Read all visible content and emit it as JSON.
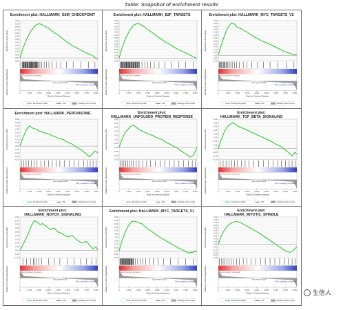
{
  "caption": "Table: Snapshot of enrichment results",
  "watermark": "生信人",
  "shared": {
    "ylabel_top": "Enrichment score (ES)",
    "ylabel_bottom": "Ranked list metric (Signal2Noise)",
    "xlabel": "Rank in Ordered Dataset",
    "x_ticks": [
      "0",
      "1,000",
      "2,000",
      "3,000",
      "4,000",
      "5,000",
      "6,000",
      "7,000",
      "8,000"
    ],
    "zero_cross_label": "Zero cross at 4,229",
    "pos_label": "'Neat' (positively correlated)",
    "neg_label": "'Mixe' (negatively correlated)",
    "legend": [
      "Enrichment profile",
      "Hits",
      "Ranking metric scores"
    ],
    "colors": {
      "profile": "#2ecc2e",
      "hits": "#000000",
      "metric": "#9a9a9a",
      "pos": "#e03030",
      "neg": "#3040c0"
    }
  },
  "chart_data": [
    {
      "type": "line",
      "title": "Enrichment plot: HALLMARK_G2M_CHECKPOINT",
      "xlim": [
        0,
        8200
      ],
      "ylim": [
        -0.05,
        0.6
      ],
      "y_ticks": [
        "0.60",
        "0.55",
        "0.50",
        "0.45",
        "0.40",
        "0.35",
        "0.30",
        "0.25",
        "0.20",
        "0.15",
        "0.10",
        "0.05",
        "0.00",
        "-0.05"
      ],
      "x": [
        0,
        300,
        700,
        1100,
        1500,
        1800,
        2100,
        2500,
        3000,
        3500,
        4000,
        4500,
        5000,
        5500,
        6000,
        6500,
        7000,
        7500,
        7800,
        8000,
        8200
      ],
      "y": [
        0,
        0.15,
        0.3,
        0.42,
        0.5,
        0.54,
        0.55,
        0.52,
        0.48,
        0.42,
        0.37,
        0.31,
        0.25,
        0.2,
        0.16,
        0.12,
        0.08,
        0.05,
        0.02,
        -0.01,
        0
      ],
      "hits": [
        120,
        240,
        400,
        560,
        640,
        800,
        960,
        1100,
        1200,
        1350,
        1500,
        1620,
        1750,
        1900,
        2100,
        2300,
        2550,
        2800,
        3050,
        3400,
        3800,
        4300,
        4900,
        5600,
        6400,
        7200,
        7900
      ],
      "hits_dense": [
        [
          300,
          1900
        ]
      ]
    },
    {
      "type": "line",
      "title": "Enrichment plot: HALLMARK_E2F_TARGETS",
      "xlim": [
        0,
        8200
      ],
      "ylim": [
        -0.05,
        0.65
      ],
      "y_ticks": [
        "0.65",
        "0.60",
        "0.55",
        "0.50",
        "0.45",
        "0.40",
        "0.35",
        "0.30",
        "0.25",
        "0.20",
        "0.15",
        "0.10",
        "0.05",
        "0.00",
        "-0.05"
      ],
      "x": [
        0,
        300,
        700,
        1100,
        1500,
        1900,
        2200,
        2600,
        3000,
        3500,
        4000,
        4500,
        5000,
        5500,
        6000,
        6500,
        7000,
        7500,
        8000,
        8200
      ],
      "y": [
        0,
        0.18,
        0.35,
        0.48,
        0.57,
        0.6,
        0.59,
        0.55,
        0.5,
        0.44,
        0.38,
        0.32,
        0.27,
        0.22,
        0.17,
        0.13,
        0.09,
        0.05,
        0.01,
        0
      ],
      "hits": [
        100,
        250,
        420,
        600,
        780,
        950,
        1100,
        1300,
        1500,
        1700,
        1900,
        2150,
        2400,
        2700,
        3000,
        3300,
        3700,
        4200,
        4800,
        5500,
        6300,
        7000,
        7800
      ],
      "hits_dense": [
        [
          200,
          2100
        ]
      ]
    },
    {
      "type": "line",
      "title": "Enrichment plot: HALLMARK_MYC_TARGETS_V2",
      "xlim": [
        0,
        8200
      ],
      "ylim": [
        -0.1,
        0.6
      ],
      "y_ticks": [
        "0.60",
        "0.55",
        "0.50",
        "0.45",
        "0.40",
        "0.35",
        "0.30",
        "0.25",
        "0.20",
        "0.15",
        "0.10",
        "0.05",
        "0.00",
        "-0.05",
        "-0.10"
      ],
      "x": [
        0,
        250,
        600,
        900,
        1200,
        1400,
        1700,
        2000,
        2400,
        2800,
        3200,
        3600,
        4000,
        4500,
        5000,
        5500,
        6000,
        6500,
        7000,
        7500,
        8000,
        8200
      ],
      "y": [
        0,
        0.15,
        0.32,
        0.45,
        0.53,
        0.56,
        0.54,
        0.48,
        0.46,
        0.42,
        0.38,
        0.33,
        0.3,
        0.25,
        0.22,
        0.18,
        0.14,
        0.1,
        0.06,
        0.03,
        0.01,
        0
      ],
      "hits": [
        80,
        150,
        250,
        330,
        420,
        520,
        610,
        700,
        800,
        900,
        1000,
        1150,
        1300,
        1450,
        1700,
        1900,
        2200,
        2600,
        3000,
        3500,
        4100,
        4700,
        5400,
        6200,
        7100,
        7900
      ],
      "hits_dense": []
    },
    {
      "type": "line",
      "title": "Enrichment plot: HALLMARK_PEROXISOME",
      "xlim": [
        0,
        8200
      ],
      "ylim": [
        -0.2,
        0.4
      ],
      "y_ticks": [
        "0.40",
        "0.35",
        "0.30",
        "0.25",
        "0.20",
        "0.15",
        "0.10",
        "0.05",
        "0.00",
        "-0.05",
        "-0.10",
        "-0.15",
        "-0.20"
      ],
      "x": [
        0,
        300,
        700,
        1000,
        1300,
        1700,
        2100,
        2500,
        3000,
        3500,
        4000,
        4500,
        5000,
        5500,
        6000,
        6500,
        7000,
        7300,
        7600,
        7900,
        8200
      ],
      "y": [
        0,
        0.12,
        0.25,
        0.3,
        0.27,
        0.25,
        0.22,
        0.2,
        0.18,
        0.15,
        0.12,
        0.1,
        0.06,
        0.03,
        -0.02,
        -0.06,
        -0.12,
        -0.16,
        -0.12,
        -0.07,
        -0.1
      ],
      "hits": [
        150,
        400,
        650,
        900,
        1200,
        1500,
        1800,
        2200,
        2600,
        3000,
        3400,
        3800,
        4200,
        4700,
        5200,
        5700,
        6200,
        6700,
        7100,
        7400,
        7700,
        8000
      ],
      "hits_dense": []
    },
    {
      "type": "line",
      "title": "Enrichment plot: HALLMARK_UNFOLDED_PROTEIN_RESPONSE",
      "xlim": [
        0,
        8200
      ],
      "ylim": [
        -0.15,
        0.35
      ],
      "y_ticks": [
        "0.35",
        "0.30",
        "0.25",
        "0.20",
        "0.15",
        "0.10",
        "0.05",
        "0.00",
        "-0.05",
        "-0.10",
        "-0.15"
      ],
      "x": [
        0,
        300,
        600,
        900,
        1200,
        1500,
        1800,
        2100,
        2500,
        3000,
        3500,
        4000,
        4500,
        5000,
        5500,
        6000,
        6500,
        7000,
        7500,
        7800,
        8000,
        8200
      ],
      "y": [
        0,
        0.1,
        0.18,
        0.22,
        0.26,
        0.28,
        0.25,
        0.22,
        0.2,
        0.17,
        0.15,
        0.12,
        0.1,
        0.06,
        0.03,
        0,
        -0.04,
        -0.08,
        -0.12,
        -0.1,
        -0.05,
        0
      ],
      "hits": [
        100,
        300,
        500,
        700,
        900,
        1100,
        1300,
        1500,
        1800,
        2100,
        2500,
        2900,
        3300,
        3800,
        4300,
        4800,
        5300,
        5800,
        6300,
        6800,
        7300,
        7700,
        8000
      ],
      "hits_dense": []
    },
    {
      "type": "line",
      "title": "Enrichment plot: HALLMARK_TGF_BETA_SIGNALING",
      "xlim": [
        0,
        8200
      ],
      "ylim": [
        -0.15,
        0.4
      ],
      "y_ticks": [
        "0.40",
        "0.35",
        "0.30",
        "0.25",
        "0.20",
        "0.15",
        "0.10",
        "0.05",
        "0.00",
        "-0.05",
        "-0.10",
        "-0.15"
      ],
      "x": [
        0,
        300,
        700,
        1100,
        1500,
        1800,
        2100,
        2500,
        3000,
        3500,
        4000,
        4500,
        5000,
        5500,
        6000,
        6500,
        7000,
        7400,
        7700,
        8000,
        8200
      ],
      "y": [
        0,
        0.12,
        0.25,
        0.32,
        0.35,
        0.33,
        0.3,
        0.28,
        0.25,
        0.22,
        0.19,
        0.16,
        0.13,
        0.1,
        0.06,
        0.03,
        -0.02,
        -0.06,
        -0.1,
        -0.05,
        -0.08
      ],
      "hits": [
        200,
        500,
        800,
        1100,
        1400,
        1700,
        2000,
        2400,
        2800,
        3200,
        3700,
        4200,
        4700,
        5200,
        5700,
        6200,
        6600,
        7000,
        7400,
        7700,
        8000
      ],
      "hits_dense": []
    },
    {
      "type": "line",
      "title": "Enrichment plot: HALLMARK_NOTCH_SIGNALING",
      "xlim": [
        0,
        8200
      ],
      "ylim": [
        -0.1,
        0.45
      ],
      "y_ticks": [
        "0.45",
        "0.40",
        "0.35",
        "0.30",
        "0.25",
        "0.20",
        "0.15",
        "0.10",
        "0.05",
        "0.00",
        "-0.05",
        "-0.10"
      ],
      "x": [
        0,
        400,
        800,
        1200,
        1500,
        1800,
        2100,
        2400,
        2800,
        3200,
        3600,
        4000,
        4500,
        5000,
        5500,
        6000,
        6500,
        7000,
        7400,
        7700,
        8000,
        8200
      ],
      "y": [
        0,
        0.1,
        0.2,
        0.33,
        0.4,
        0.38,
        0.35,
        0.36,
        0.32,
        0.28,
        0.3,
        0.25,
        0.22,
        0.18,
        0.2,
        0.14,
        0.1,
        0.12,
        0.06,
        0.02,
        0.05,
        0
      ],
      "hits": [
        300,
        700,
        1100,
        1400,
        1500,
        1700,
        2000,
        2300,
        3000,
        3600,
        4200,
        5000,
        5700,
        6400,
        7000,
        7600,
        8000
      ],
      "hits_dense": []
    },
    {
      "type": "line",
      "title": "Enrichment plot: HALLMARK_MYC_TARGETS_V1",
      "xlim": [
        0,
        8200
      ],
      "ylim": [
        -0.1,
        0.5
      ],
      "y_ticks": [
        "0.50",
        "0.45",
        "0.40",
        "0.35",
        "0.30",
        "0.25",
        "0.20",
        "0.15",
        "0.10",
        "0.05",
        "0.00",
        "-0.05",
        "-0.10"
      ],
      "x": [
        0,
        300,
        700,
        1000,
        1300,
        1600,
        2000,
        2400,
        2800,
        3300,
        3800,
        4300,
        4800,
        5300,
        5800,
        6300,
        6800,
        7300,
        7700,
        8000,
        8200
      ],
      "y": [
        0,
        0.15,
        0.3,
        0.38,
        0.43,
        0.44,
        0.42,
        0.4,
        0.35,
        0.3,
        0.25,
        0.2,
        0.16,
        0.12,
        0.08,
        0.04,
        0.01,
        -0.03,
        -0.02,
        -0.01,
        0
      ],
      "hits": [
        80,
        200,
        350,
        500,
        650,
        800,
        950,
        1100,
        1300,
        1500,
        1700,
        1950,
        2200,
        2500,
        2800,
        3200,
        3600,
        4100,
        4700,
        5400,
        6200,
        7000,
        7800
      ],
      "hits_dense": [
        [
          150,
          1500
        ]
      ]
    },
    {
      "type": "line",
      "title": "Enrichment plot: HALLMARK_MITOTIC_SPINDLE",
      "xlim": [
        0,
        8200
      ],
      "ylim": [
        -0.25,
        0.5
      ],
      "y_ticks": [
        "0.50",
        "0.45",
        "0.40",
        "0.35",
        "0.30",
        "0.25",
        "0.20",
        "0.15",
        "0.10",
        "0.05",
        "0.00",
        "-0.05",
        "-0.10",
        "-0.15",
        "-0.20",
        "-0.25"
      ],
      "x": [
        0,
        300,
        700,
        1100,
        1500,
        1900,
        2300,
        2800,
        3300,
        3800,
        4300,
        4800,
        5300,
        5800,
        6300,
        6800,
        7200,
        7500,
        7800,
        8000,
        8200
      ],
      "y": [
        0,
        0.15,
        0.28,
        0.36,
        0.4,
        0.42,
        0.4,
        0.35,
        0.3,
        0.25,
        0.2,
        0.14,
        0.08,
        0.02,
        -0.04,
        -0.1,
        -0.14,
        -0.15,
        -0.12,
        -0.08,
        -0.05
      ],
      "hits": [
        120,
        300,
        500,
        700,
        900,
        1100,
        1350,
        1600,
        1900,
        2200,
        2600,
        3000,
        3400,
        3900,
        4400,
        4900,
        5400,
        5900,
        6400,
        6900,
        7300,
        7700,
        8000
      ],
      "hits_dense": []
    }
  ]
}
